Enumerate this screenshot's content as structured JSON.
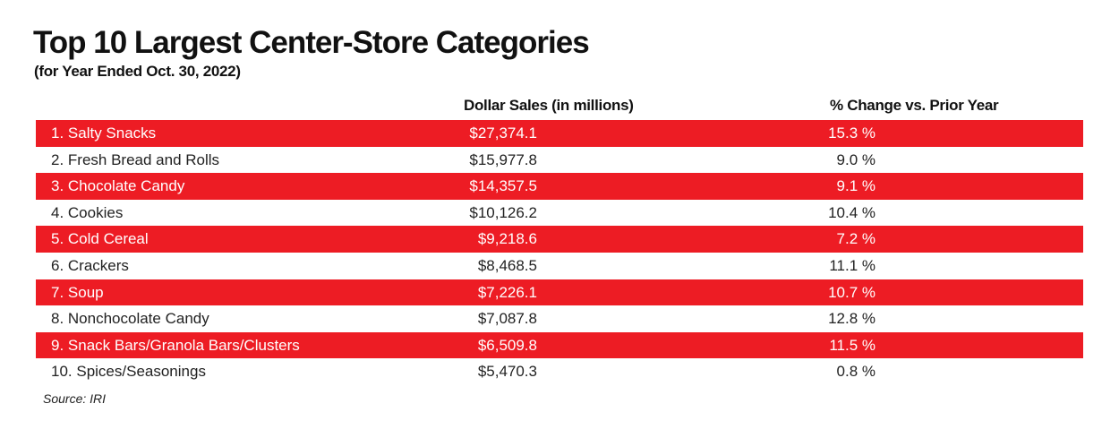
{
  "chart_data": {
    "type": "table",
    "title": "Top 10 Largest Center-Store Categories",
    "subtitle": "(for Year Ended Oct. 30, 2022)",
    "columns": [
      "",
      "Dollar Sales (in millions)",
      "% Change vs. Prior Year"
    ],
    "rows": [
      {
        "category": "1. Salty Snacks",
        "sales": "$27,374.1",
        "change": "15.3 %"
      },
      {
        "category": "2. Fresh Bread and Rolls",
        "sales": "$15,977.8",
        "change": "9.0 %"
      },
      {
        "category": "3. Chocolate Candy",
        "sales": "$14,357.5",
        "change": "9.1 %"
      },
      {
        "category": "4. Cookies",
        "sales": "$10,126.2",
        "change": "10.4 %"
      },
      {
        "category": "5. Cold Cereal",
        "sales": "$9,218.6",
        "change": "7.2 %"
      },
      {
        "category": "6. Crackers",
        "sales": "$8,468.5",
        "change": "11.1 %"
      },
      {
        "category": "7. Soup",
        "sales": "$7,226.1",
        "change": "10.7 %"
      },
      {
        "category": "8. Nonchocolate Candy",
        "sales": "$7,087.8",
        "change": "12.8 %"
      },
      {
        "category": "9. Snack Bars/Granola Bars/Clusters",
        "sales": "$6,509.8",
        "change": "11.5 %"
      },
      {
        "category": "10. Spices/Seasonings",
        "sales": "$5,470.3",
        "change": "0.8 %"
      }
    ],
    "source": "Source: IRI",
    "colors": {
      "stripe": "#ed1c24",
      "stripe_text": "#ffffff",
      "text": "#222222"
    }
  }
}
